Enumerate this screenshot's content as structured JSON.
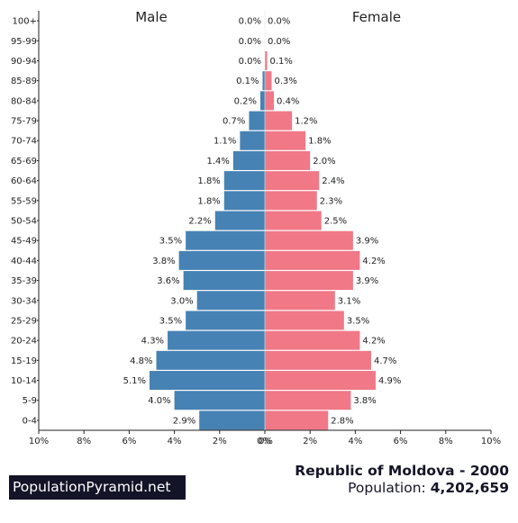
{
  "footer": {
    "brand": "PopulationPyramid.net",
    "country_year": "Republic of Moldova - 2000",
    "population_label": "Population:",
    "population_value": "4,202,659"
  },
  "chart_data": {
    "type": "bar",
    "orientation": "horizontal-pyramid",
    "left_title": "Male",
    "right_title": "Female",
    "xlim": [
      -10,
      10
    ],
    "x_ticks": [
      "10%",
      "8%",
      "6%",
      "4%",
      "2%",
      "0%",
      "0%",
      "2%",
      "4%",
      "6%",
      "8%",
      "10%"
    ],
    "categories": [
      "100+",
      "95-99",
      "90-94",
      "85-89",
      "80-84",
      "75-79",
      "70-74",
      "65-69",
      "60-64",
      "55-59",
      "50-54",
      "45-49",
      "40-44",
      "35-39",
      "30-34",
      "25-29",
      "20-24",
      "15-19",
      "10-14",
      "5-9",
      "0-4"
    ],
    "series": [
      {
        "name": "Male",
        "color": "#4682b4",
        "values": [
          0.0,
          0.0,
          0.0,
          0.1,
          0.2,
          0.7,
          1.1,
          1.4,
          1.8,
          1.8,
          2.2,
          3.5,
          3.8,
          3.6,
          3.0,
          3.5,
          4.3,
          4.8,
          5.1,
          4.0,
          2.9
        ],
        "labels": [
          "0.0%",
          "0.0%",
          "0.0%",
          "0.1%",
          "0.2%",
          "0.7%",
          "1.1%",
          "1.4%",
          "1.8%",
          "1.8%",
          "2.2%",
          "3.5%",
          "3.8%",
          "3.6%",
          "3.0%",
          "3.5%",
          "4.3%",
          "4.8%",
          "5.1%",
          "4.0%",
          "2.9%"
        ]
      },
      {
        "name": "Female",
        "color": "#f07887",
        "values": [
          0.0,
          0.0,
          0.1,
          0.3,
          0.4,
          1.2,
          1.8,
          2.0,
          2.4,
          2.3,
          2.5,
          3.9,
          4.2,
          3.9,
          3.1,
          3.5,
          4.2,
          4.7,
          4.9,
          3.8,
          2.8
        ],
        "labels": [
          "0.0%",
          "0.0%",
          "0.1%",
          "0.3%",
          "0.4%",
          "1.2%",
          "1.8%",
          "2.0%",
          "2.4%",
          "2.3%",
          "2.5%",
          "3.9%",
          "4.2%",
          "3.9%",
          "3.1%",
          "3.5%",
          "4.2%",
          "4.7%",
          "4.9%",
          "3.8%",
          "2.8%"
        ]
      }
    ]
  }
}
